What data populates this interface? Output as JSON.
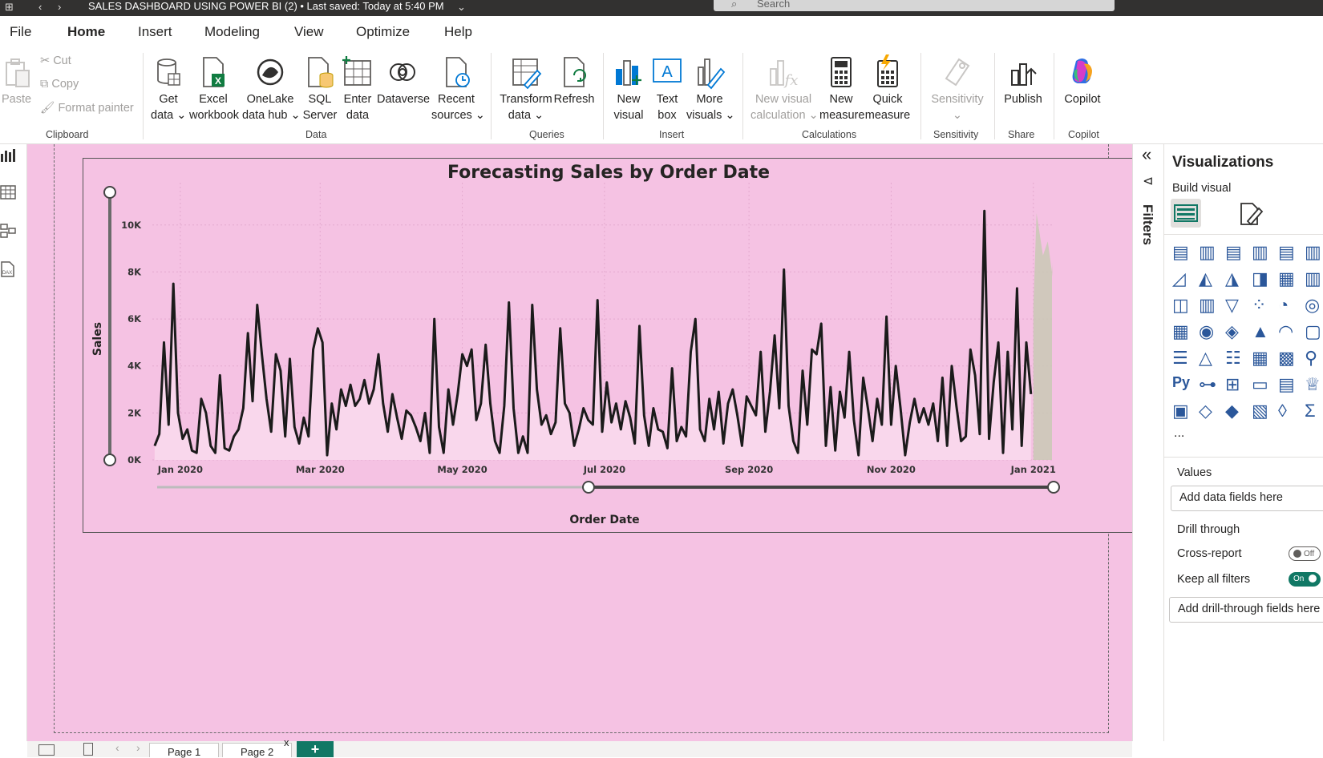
{
  "titlebar": {
    "title": "SALES DASHBOARD USING POWER BI (2) • Last saved: Today at 5:40 PM",
    "search_placeholder": "Search"
  },
  "menu": [
    "File",
    "Home",
    "Insert",
    "Modeling",
    "View",
    "Optimize",
    "Help"
  ],
  "active_menu": "Home",
  "ribbon": {
    "clipboard": {
      "paste": "Paste",
      "cut": "Cut",
      "copy": "Copy",
      "format_painter": "Format painter",
      "group": "Clipboard"
    },
    "data": {
      "get_data": [
        "Get",
        "data ⌄"
      ],
      "excel": [
        "Excel",
        "workbook"
      ],
      "onelake": [
        "OneLake",
        "data hub ⌄"
      ],
      "sql": [
        "SQL",
        "Server"
      ],
      "enter": [
        "Enter",
        "data"
      ],
      "dataverse": [
        "Dataverse"
      ],
      "recent": [
        "Recent",
        "sources ⌄"
      ],
      "group": "Data"
    },
    "queries": {
      "transform": [
        "Transform",
        "data ⌄"
      ],
      "refresh": [
        "Refresh"
      ],
      "group": "Queries"
    },
    "insert": {
      "new_visual": [
        "New",
        "visual"
      ],
      "text_box": [
        "Text",
        "box"
      ],
      "more_visuals": [
        "More",
        "visuals ⌄"
      ],
      "group": "Insert"
    },
    "calculations": {
      "new_visual_calc": [
        "New visual",
        "calculation ⌄"
      ],
      "new_measure": [
        "New",
        "measure"
      ],
      "quick_measure": [
        "Quick",
        "measure"
      ],
      "group": "Calculations"
    },
    "sensitivity": {
      "label": [
        "Sensitivity",
        "⌄"
      ],
      "group": "Sensitivity"
    },
    "share": {
      "publish": [
        "Publish"
      ],
      "group": "Share"
    },
    "copilot": {
      "label": [
        "Copilot"
      ],
      "group": "Copilot"
    }
  },
  "filters_label": "Filters",
  "visualizations": {
    "title": "Visualizations",
    "build_visual": "Build visual",
    "more": "...",
    "values_label": "Values",
    "values_placeholder": "Add data fields here",
    "drill_through": "Drill through",
    "cross_report": "Cross-report",
    "cross_report_state": "Off",
    "keep_all_filters": "Keep all filters",
    "keep_all_filters_state": "On",
    "drill_placeholder": "Add drill-through fields here"
  },
  "pages": [
    "Page 1",
    "Page 2"
  ],
  "add_page": "+",
  "colors": {
    "accent": "#117865",
    "canvas": "#f5c2e3",
    "line": "#1b1b1b",
    "forecast": "#c9c9b5"
  },
  "chart_data": {
    "type": "line",
    "title": "Forecasting Sales by Order Date",
    "xlabel": "Order Date",
    "ylabel": "Sales",
    "ylim": [
      0,
      11800
    ],
    "y_ticks": [
      "0K",
      "2K",
      "4K",
      "6K",
      "8K",
      "10K"
    ],
    "y_tick_values": [
      0,
      2000,
      4000,
      6000,
      8000,
      10000
    ],
    "x_ticks": [
      "Jan 2020",
      "Mar 2020",
      "May 2020",
      "Jul 2020",
      "Sep 2020",
      "Nov 2020",
      "Jan 2021"
    ],
    "x_tick_days": [
      0,
      60,
      121,
      182,
      244,
      305,
      366
    ],
    "xlim_days": [
      -12,
      374
    ],
    "series": [
      {
        "values": [
          [
            -11,
            600
          ],
          [
            -9,
            1100
          ],
          [
            -7,
            5000
          ],
          [
            -5,
            1500
          ],
          [
            -3,
            7500
          ],
          [
            -1,
            2000
          ],
          [
            1,
            900
          ],
          [
            3,
            1300
          ],
          [
            5,
            400
          ],
          [
            7,
            300
          ],
          [
            9,
            2600
          ],
          [
            11,
            2000
          ],
          [
            13,
            600
          ],
          [
            15,
            300
          ],
          [
            17,
            3600
          ],
          [
            19,
            500
          ],
          [
            21,
            400
          ],
          [
            23,
            1000
          ],
          [
            25,
            1300
          ],
          [
            27,
            2200
          ],
          [
            29,
            5400
          ],
          [
            31,
            2500
          ],
          [
            33,
            6600
          ],
          [
            35,
            4500
          ],
          [
            37,
            2600
          ],
          [
            39,
            1200
          ],
          [
            41,
            4500
          ],
          [
            43,
            3800
          ],
          [
            45,
            1000
          ],
          [
            47,
            4300
          ],
          [
            49,
            1400
          ],
          [
            51,
            700
          ],
          [
            53,
            1800
          ],
          [
            55,
            1000
          ],
          [
            57,
            4700
          ],
          [
            59,
            5600
          ],
          [
            61,
            5000
          ],
          [
            63,
            200
          ],
          [
            65,
            2400
          ],
          [
            67,
            1300
          ],
          [
            69,
            3000
          ],
          [
            71,
            2300
          ],
          [
            73,
            3200
          ],
          [
            75,
            2300
          ],
          [
            77,
            2600
          ],
          [
            79,
            3400
          ],
          [
            81,
            2400
          ],
          [
            83,
            3000
          ],
          [
            85,
            4500
          ],
          [
            87,
            2400
          ],
          [
            89,
            1200
          ],
          [
            91,
            2800
          ],
          [
            93,
            1800
          ],
          [
            95,
            900
          ],
          [
            97,
            2100
          ],
          [
            99,
            1900
          ],
          [
            101,
            1400
          ],
          [
            103,
            800
          ],
          [
            105,
            2000
          ],
          [
            107,
            300
          ],
          [
            109,
            6000
          ],
          [
            111,
            1400
          ],
          [
            113,
            300
          ],
          [
            115,
            3000
          ],
          [
            117,
            1500
          ],
          [
            119,
            2800
          ],
          [
            121,
            4500
          ],
          [
            123,
            4000
          ],
          [
            125,
            4700
          ],
          [
            127,
            1700
          ],
          [
            129,
            2400
          ],
          [
            131,
            4900
          ],
          [
            133,
            2400
          ],
          [
            135,
            800
          ],
          [
            137,
            300
          ],
          [
            139,
            2300
          ],
          [
            141,
            6700
          ],
          [
            143,
            2200
          ],
          [
            145,
            300
          ],
          [
            147,
            1000
          ],
          [
            149,
            300
          ],
          [
            151,
            6600
          ],
          [
            153,
            3000
          ],
          [
            155,
            1500
          ],
          [
            157,
            1900
          ],
          [
            159,
            1100
          ],
          [
            161,
            1600
          ],
          [
            163,
            5600
          ],
          [
            165,
            2400
          ],
          [
            167,
            2000
          ],
          [
            169,
            600
          ],
          [
            171,
            1300
          ],
          [
            173,
            2200
          ],
          [
            175,
            1700
          ],
          [
            177,
            1500
          ],
          [
            179,
            6800
          ],
          [
            181,
            1200
          ],
          [
            183,
            3300
          ],
          [
            185,
            1600
          ],
          [
            187,
            2400
          ],
          [
            189,
            1300
          ],
          [
            191,
            2500
          ],
          [
            193,
            1800
          ],
          [
            195,
            700
          ],
          [
            197,
            5700
          ],
          [
            199,
            1900
          ],
          [
            201,
            600
          ],
          [
            203,
            2200
          ],
          [
            205,
            1300
          ],
          [
            207,
            1200
          ],
          [
            209,
            500
          ],
          [
            211,
            3900
          ],
          [
            213,
            800
          ],
          [
            215,
            1400
          ],
          [
            217,
            1000
          ],
          [
            219,
            4600
          ],
          [
            221,
            6000
          ],
          [
            223,
            1300
          ],
          [
            225,
            800
          ],
          [
            227,
            2600
          ],
          [
            229,
            1300
          ],
          [
            231,
            2900
          ],
          [
            233,
            700
          ],
          [
            235,
            2400
          ],
          [
            237,
            3000
          ],
          [
            239,
            1900
          ],
          [
            241,
            600
          ],
          [
            243,
            2700
          ],
          [
            245,
            2300
          ],
          [
            247,
            1900
          ],
          [
            249,
            4600
          ],
          [
            251,
            1200
          ],
          [
            253,
            2900
          ],
          [
            255,
            5300
          ],
          [
            257,
            2200
          ],
          [
            259,
            8100
          ],
          [
            261,
            2300
          ],
          [
            263,
            800
          ],
          [
            265,
            300
          ],
          [
            267,
            3800
          ],
          [
            269,
            1500
          ],
          [
            271,
            4700
          ],
          [
            273,
            4500
          ],
          [
            275,
            5800
          ],
          [
            277,
            600
          ],
          [
            279,
            3100
          ],
          [
            281,
            400
          ],
          [
            283,
            2900
          ],
          [
            285,
            1800
          ],
          [
            287,
            4600
          ],
          [
            289,
            1700
          ],
          [
            291,
            200
          ],
          [
            293,
            3500
          ],
          [
            295,
            2200
          ],
          [
            297,
            800
          ],
          [
            299,
            2600
          ],
          [
            301,
            1500
          ],
          [
            303,
            6100
          ],
          [
            305,
            1500
          ],
          [
            307,
            4000
          ],
          [
            309,
            2200
          ],
          [
            311,
            200
          ],
          [
            313,
            1600
          ],
          [
            315,
            2600
          ],
          [
            317,
            1600
          ],
          [
            319,
            2200
          ],
          [
            321,
            1500
          ],
          [
            323,
            2400
          ],
          [
            325,
            800
          ],
          [
            327,
            3500
          ],
          [
            329,
            600
          ],
          [
            331,
            4000
          ],
          [
            333,
            2300
          ],
          [
            335,
            800
          ],
          [
            337,
            1000
          ],
          [
            339,
            4700
          ],
          [
            341,
            3600
          ],
          [
            343,
            1100
          ],
          [
            345,
            10600
          ],
          [
            347,
            900
          ],
          [
            349,
            3300
          ],
          [
            351,
            5000
          ],
          [
            353,
            300
          ],
          [
            355,
            4600
          ],
          [
            357,
            1300
          ],
          [
            359,
            7300
          ],
          [
            361,
            600
          ],
          [
            363,
            5000
          ],
          [
            365,
            2800
          ],
          [
            367,
            900
          ],
          [
            369,
            11800
          ],
          [
            371,
            500
          ],
          [
            373,
            2700
          ]
        ]
      }
    ]
  }
}
